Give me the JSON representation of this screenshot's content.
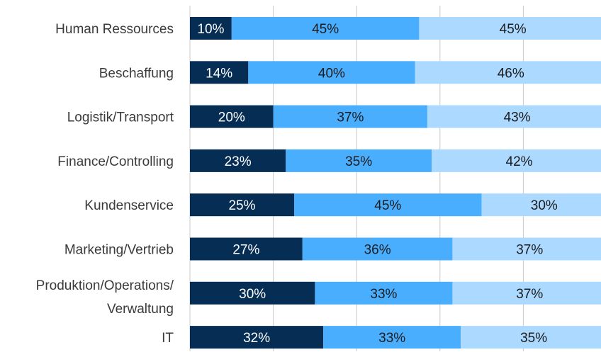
{
  "chart_data": {
    "type": "bar",
    "orientation": "horizontal",
    "stacked": true,
    "normalized": true,
    "xlim": [
      0,
      100
    ],
    "grid": true,
    "categories": [
      "Human Ressources",
      "Beschaffung",
      "Logistik/Transport",
      "Finance/Controlling",
      "Kundenservice",
      "Marketing/Vertrieb",
      "Produktion/Operations/ Verwaltung",
      "IT"
    ],
    "series": [
      {
        "color": "#062d54",
        "label_color": "#ffffff",
        "values": [
          10,
          14,
          20,
          23,
          25,
          27,
          30,
          32
        ]
      },
      {
        "color": "#4aaeff",
        "label_color": "#1c1c1c",
        "values": [
          45,
          40,
          37,
          35,
          45,
          36,
          33,
          33
        ]
      },
      {
        "color": "#acd9ff",
        "label_color": "#1c1c1c",
        "values": [
          45,
          46,
          43,
          42,
          30,
          37,
          37,
          35
        ]
      }
    ],
    "label_suffix": "%"
  }
}
